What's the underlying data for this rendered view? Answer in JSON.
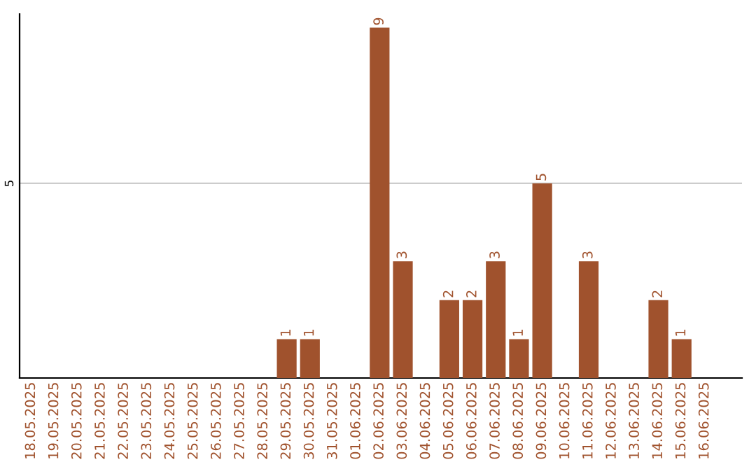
{
  "chart_data": {
    "type": "bar",
    "categories": [
      "18.05.2025",
      "19.05.2025",
      "20.05.2025",
      "21.05.2025",
      "22.05.2025",
      "23.05.2025",
      "24.05.2025",
      "25.05.2025",
      "26.05.2025",
      "27.05.2025",
      "28.05.2025",
      "29.05.2025",
      "30.05.2025",
      "31.05.2025",
      "01.06.2025",
      "02.06.2025",
      "03.06.2025",
      "04.06.2025",
      "05.06.2025",
      "06.06.2025",
      "07.06.2025",
      "08.06.2025",
      "09.06.2025",
      "10.06.2025",
      "11.06.2025",
      "12.06.2025",
      "13.06.2025",
      "14.06.2025",
      "15.06.2025",
      "16.06.2025"
    ],
    "values": [
      0,
      0,
      0,
      0,
      0,
      0,
      0,
      0,
      0,
      0,
      0,
      1,
      1,
      0,
      0,
      9,
      3,
      0,
      2,
      2,
      3,
      1,
      5,
      0,
      3,
      0,
      0,
      2,
      1,
      0
    ],
    "color": "#a0522d",
    "value_labels": [
      null,
      null,
      null,
      null,
      null,
      null,
      null,
      null,
      null,
      null,
      null,
      "1",
      "1",
      null,
      null,
      "9",
      "3",
      null,
      "2",
      "2",
      "3",
      "1",
      "5",
      null,
      "3",
      null,
      null,
      "2",
      "1",
      null
    ],
    "ylim": [
      0,
      9.35
    ],
    "yticks": [
      5
    ],
    "grid": "y"
  }
}
